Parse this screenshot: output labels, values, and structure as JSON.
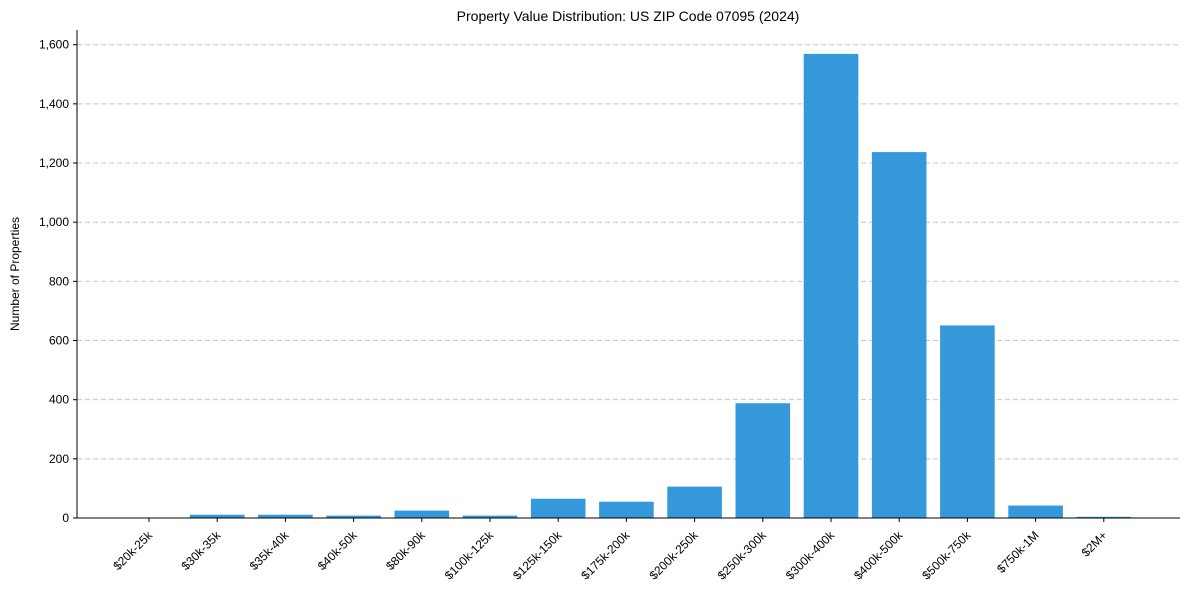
{
  "chart_data": {
    "type": "bar",
    "title": "Property Value Distribution: US ZIP Code 07095 (2024)",
    "xlabel": "",
    "ylabel": "Number of Properties",
    "categories": [
      "$20k-25k",
      "$30k-35k",
      "$35k-40k",
      "$40k-50k",
      "$80k-90k",
      "$100k-125k",
      "$125k-150k",
      "$175k-200k",
      "$200k-250k",
      "$250k-300k",
      "$300k-400k",
      "$400k-500k",
      "$500k-750k",
      "$750k-1M",
      "$2M+"
    ],
    "values": [
      0,
      11,
      11,
      8,
      25,
      8,
      65,
      55,
      106,
      388,
      1569,
      1237,
      651,
      42,
      4
    ],
    "ylim": [
      0,
      1650
    ],
    "yticks": [
      0,
      200,
      400,
      600,
      800,
      1000,
      1200,
      1400,
      1600
    ],
    "ytick_labels": [
      "0",
      "200",
      "400",
      "600",
      "800",
      "1,000",
      "1,200",
      "1,400",
      "1,600"
    ],
    "grid": "y-dashed",
    "bar_color": "#3498db"
  }
}
